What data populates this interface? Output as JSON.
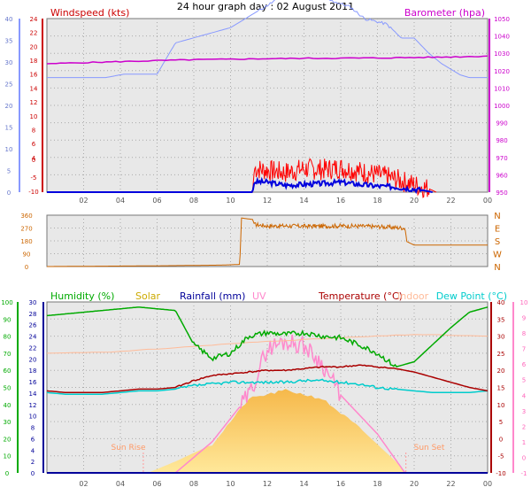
{
  "title": "24 hour graph day : 02 August 2011",
  "x_tick_labels": [
    "02",
    "04",
    "06",
    "08",
    "10",
    "12",
    "14",
    "16",
    "18",
    "20",
    "22",
    "00"
  ],
  "colors": {
    "windspeed": "#cc0000",
    "barometer": "#cc00cc",
    "gust": "#ff0000",
    "wind_avg": "#0000dd",
    "wind_scale_line": "#8899ff",
    "wind_dir": "#cc6600",
    "humidity": "#00aa00",
    "solar": "#ccaa00",
    "rainfall": "#000099",
    "uv": "#ff88cc",
    "temperature": "#aa0000",
    "indoor": "#ffbb99",
    "dewpoint": "#00cccc"
  },
  "chart_data": [
    {
      "type": "line",
      "title": "",
      "legend": [
        "Windspeed (kts)",
        "Barometer (hpa)"
      ],
      "axes": {
        "left_outer": {
          "ticks": [
            "0",
            "5",
            "10",
            "15",
            "20",
            "25",
            "30",
            "35",
            "40"
          ],
          "range": [
            0,
            40
          ]
        },
        "left_inner": {
          "ticks": [
            "0",
            "2",
            "4",
            "6",
            "8",
            "10",
            "12",
            "14",
            "16",
            "18",
            "20",
            "22",
            "24"
          ],
          "range": [
            0,
            24
          ]
        },
        "left_lower": {
          "ticks": [
            "-10",
            "-5",
            "0"
          ]
        },
        "right": {
          "ticks": [
            "950",
            "960",
            "970",
            "980",
            "990",
            "1000",
            "1010",
            "1020",
            "1030",
            "1040",
            "1050"
          ],
          "range": [
            950,
            1050
          ]
        }
      },
      "series": [
        {
          "name": "Barometer (hpa)",
          "x": [
            0,
            2,
            4,
            6,
            8,
            10,
            12,
            14,
            16,
            18,
            20,
            22,
            24
          ],
          "y": [
            1024,
            1024.6,
            1025.2,
            1025.8,
            1026.3,
            1026.6,
            1026.9,
            1027.1,
            1027.2,
            1027.3,
            1027.6,
            1027.9,
            1028.4
          ]
        },
        {
          "name": "",
          "x": [
            0,
            0.8,
            3.2,
            4.2,
            6.0,
            7.0,
            10.0,
            12.5,
            13.0,
            15.0,
            16.5,
            17.3,
            18.5,
            19.3,
            20.0,
            20.8,
            21.5,
            22.5,
            23.0,
            24.0
          ],
          "y": [
            15.5,
            15.5,
            15.5,
            16.0,
            16.0,
            20.5,
            22.7,
            26.7,
            27.2,
            27.0,
            25.7,
            24.0,
            23.2,
            21.2,
            21.2,
            19.0,
            17.5,
            15.9,
            15.5,
            15.5
          ]
        },
        {
          "name": "",
          "x": [
            0,
            11.2,
            11.3,
            12,
            13,
            14,
            15,
            16,
            17,
            18,
            19,
            19.6,
            20.4,
            21
          ],
          "y": [
            0,
            0,
            2.4,
            2.3,
            1.6,
            1.8,
            2.0,
            2.3,
            1.8,
            1.4,
            1.2,
            0.9,
            0.5,
            0
          ]
        },
        {
          "name": "",
          "x": [
            0,
            11.2,
            11.3,
            12,
            13,
            14,
            15,
            16,
            17,
            18,
            19,
            20,
            20.8,
            21.2
          ],
          "y": [
            0,
            0,
            5.5,
            5.0,
            4.5,
            5.4,
            5.2,
            5.6,
            4.8,
            4.0,
            3.0,
            1.7,
            0.8,
            0
          ]
        }
      ]
    },
    {
      "type": "line",
      "title": "",
      "axes": {
        "left": {
          "ticks": [
            "0",
            "90",
            "180",
            "270",
            "360"
          ],
          "range": [
            0,
            360
          ]
        },
        "right": {
          "ticks": [
            "N",
            "W",
            "S",
            "E",
            "N"
          ]
        }
      },
      "series": [
        {
          "name": "",
          "x": [
            0,
            6.0,
            9.5,
            10.5,
            10.6,
            11.2,
            11.3,
            12,
            13,
            14,
            15,
            16,
            17,
            18,
            19.5,
            19.6,
            20.0,
            24.0
          ],
          "y": [
            0,
            5,
            10,
            15,
            340,
            330,
            295,
            285,
            285,
            283,
            283,
            285,
            283,
            280,
            270,
            175,
            150,
            150
          ]
        }
      ]
    },
    {
      "type": "line",
      "title": "",
      "legend": [
        "Humidity (%)",
        "Solar",
        "Rainfall (mm)",
        "UV",
        "Temperature (°C)",
        "Indoor",
        "Dew Point (°C)"
      ],
      "axes": {
        "humidity": {
          "ticks": [
            "0",
            "10",
            "20",
            "30",
            "40",
            "50",
            "60",
            "70",
            "80",
            "90",
            "100"
          ],
          "range": [
            0,
            100
          ]
        },
        "rain_solar": {
          "ticks": [
            "0",
            "2",
            "4",
            "6",
            "8",
            "10",
            "12",
            "14",
            "16",
            "18",
            "20",
            "22",
            "24",
            "26",
            "28",
            "30"
          ],
          "range": [
            0,
            30
          ]
        },
        "temperature": {
          "ticks": [
            "-10",
            "-5",
            "0",
            "5",
            "10",
            "15",
            "20",
            "25",
            "30",
            "35",
            "40"
          ],
          "range": [
            -10,
            40
          ]
        },
        "uv": {
          "ticks": [
            "-1",
            "0",
            "1",
            "2",
            "3",
            "4",
            "5",
            "6",
            "7",
            "8",
            "9",
            "10"
          ],
          "range": [
            -1,
            10
          ]
        }
      },
      "annotations": [
        "Sun Rise",
        "Sun Set"
      ],
      "series": [
        {
          "name": "Humidity (%)",
          "x": [
            0,
            1,
            2,
            3,
            4,
            5,
            6,
            7,
            8,
            9,
            10,
            11,
            12,
            13,
            14,
            15,
            16,
            17,
            18,
            19,
            20,
            21,
            22,
            23,
            24
          ],
          "y": [
            92,
            93,
            94,
            95,
            96,
            97,
            96,
            95,
            75,
            67,
            70,
            80,
            82,
            81,
            82,
            80,
            79,
            75,
            70,
            62,
            65,
            75,
            85,
            94,
            97
          ]
        },
        {
          "name": "Temperature (°C)",
          "x": [
            0,
            1,
            2,
            3,
            4,
            5,
            6,
            7,
            8,
            9,
            10,
            11,
            12,
            13,
            14,
            15,
            16,
            17,
            18,
            19,
            20,
            21,
            22,
            23,
            24
          ],
          "y": [
            14.0,
            13.5,
            13.5,
            13.5,
            14.0,
            14.5,
            14.5,
            15.0,
            17.0,
            18.5,
            19.0,
            19.5,
            20.0,
            20.0,
            20.5,
            21.0,
            21.0,
            21.5,
            21.0,
            20.5,
            19.5,
            18.0,
            16.5,
            15.0,
            14.0
          ]
        },
        {
          "name": "Dew Point (°C)",
          "x": [
            0,
            1,
            2,
            3,
            4,
            5,
            6,
            7,
            8,
            9,
            10,
            11,
            12,
            13,
            14,
            15,
            16,
            17,
            18,
            19,
            20,
            21,
            22,
            23,
            24
          ],
          "y": [
            13.5,
            13.0,
            13.0,
            13.0,
            13.5,
            14.0,
            14.0,
            14.5,
            15.5,
            16.0,
            16.5,
            16.5,
            16.5,
            16.5,
            17.0,
            17.0,
            16.5,
            16.0,
            15.0,
            14.5,
            14.0,
            13.5,
            13.5,
            13.5,
            14.0
          ]
        },
        {
          "name": "Indoor",
          "x": [
            0,
            4,
            8,
            12,
            16,
            20,
            24
          ],
          "y": [
            25.0,
            25.5,
            27.0,
            28.5,
            29.5,
            30.5,
            30.0
          ]
        },
        {
          "name": "Solar",
          "x": [
            0,
            5.5,
            7,
            9,
            11,
            13,
            15,
            17,
            19,
            19.5,
            24
          ],
          "y": [
            0,
            0,
            2,
            5,
            13,
            14.5,
            13,
            8,
            2,
            0,
            0
          ]
        },
        {
          "name": "UV",
          "x": [
            0,
            7,
            9,
            11,
            12,
            13,
            14,
            15,
            16,
            18,
            19.5,
            24
          ],
          "y": [
            -1,
            -1,
            1,
            4,
            7,
            7.5,
            7.2,
            6,
            4,
            1.5,
            -1,
            -1
          ]
        }
      ]
    }
  ]
}
